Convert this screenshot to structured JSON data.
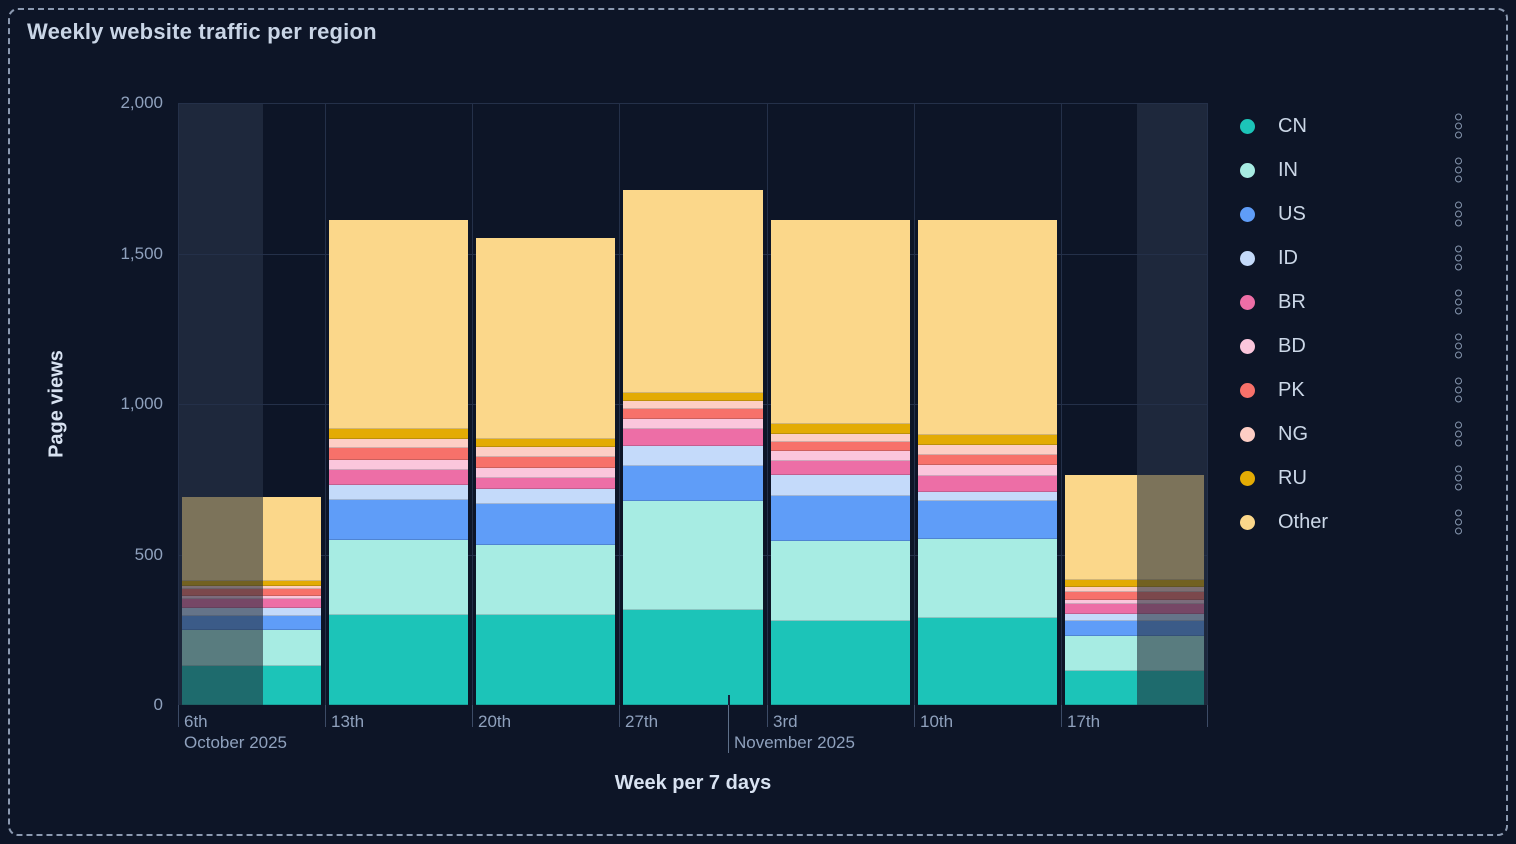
{
  "title": "Weekly website traffic per region",
  "axes": {
    "y_label": "Page views",
    "x_label": "Week per 7 days",
    "y_ticks": [
      {
        "label": "0",
        "value": 0
      },
      {
        "label": "500",
        "value": 500
      },
      {
        "label": "1,000",
        "value": 1000
      },
      {
        "label": "1,500",
        "value": 1500
      },
      {
        "label": "2,000",
        "value": 2000
      }
    ]
  },
  "x_labels": {
    "weeks": [
      "6th",
      "13th",
      "20th",
      "27th",
      "3rd",
      "10th",
      "17th"
    ],
    "months": [
      {
        "text": "October 2025",
        "anchor_week": 0
      },
      {
        "text": "November 2025",
        "anchor_week": 4
      }
    ]
  },
  "colors": {
    "background": "#0D1527",
    "panel_border": "#8B99B0",
    "grid": "#243049",
    "dim_overlay": "rgba(33,43,55,0.58)",
    "dim_backdrop": "rgba(150,172,205,0.13)"
  },
  "legend": {
    "menu_icon": "kebab-dots-icon",
    "items": [
      "CN",
      "IN",
      "US",
      "ID",
      "BR",
      "BD",
      "PK",
      "NG",
      "RU",
      "Other"
    ]
  },
  "chart_data": {
    "type": "bar",
    "stacked": true,
    "title": "Weekly website traffic per region",
    "xlabel": "Week per 7 days",
    "ylabel": "Page views",
    "ylim": [
      0,
      2000
    ],
    "legend_position": "right",
    "grid": true,
    "categories": [
      "6th October 2025",
      "13th October 2025",
      "20th October 2025",
      "27th October 2025",
      "3rd November 2025",
      "10th November 2025",
      "17th November 2025"
    ],
    "series": [
      {
        "name": "CN",
        "color": "#1CC4B8",
        "values": [
          130,
          300,
          300,
          316,
          279,
          290,
          113
        ]
      },
      {
        "name": "IN",
        "color": "#A7ECE3",
        "values": [
          119,
          248,
          231,
          363,
          265,
          260,
          117
        ]
      },
      {
        "name": "US",
        "color": "#5F9DF8",
        "values": [
          47,
          133,
          136,
          115,
          149,
          128,
          50
        ]
      },
      {
        "name": "ID",
        "color": "#C4DAFA",
        "values": [
          27,
          50,
          52,
          66,
          72,
          31,
          22
        ]
      },
      {
        "name": "BR",
        "color": "#ED6EA6",
        "values": [
          28,
          50,
          37,
          56,
          45,
          52,
          33
        ]
      },
      {
        "name": "BD",
        "color": "#FBC6DC",
        "values": [
          12,
          33,
          32,
          33,
          33,
          36,
          15
        ]
      },
      {
        "name": "PK",
        "color": "#F7716A",
        "values": [
          21,
          41,
          35,
          33,
          31,
          34,
          25
        ]
      },
      {
        "name": "NG",
        "color": "#FDCEC5",
        "values": [
          12,
          29,
          33,
          29,
          28,
          33,
          17
        ]
      },
      {
        "name": "RU",
        "color": "#E3AB04",
        "values": [
          17,
          33,
          27,
          27,
          33,
          33,
          22
        ]
      },
      {
        "name": "Other",
        "color": "#FBD78A",
        "values": [
          278,
          694,
          668,
          673,
          675,
          714,
          350
        ]
      }
    ],
    "dimmed_edges": {
      "first_week_covered_fraction": 0.58,
      "last_week_start_fraction": 0.52
    }
  }
}
